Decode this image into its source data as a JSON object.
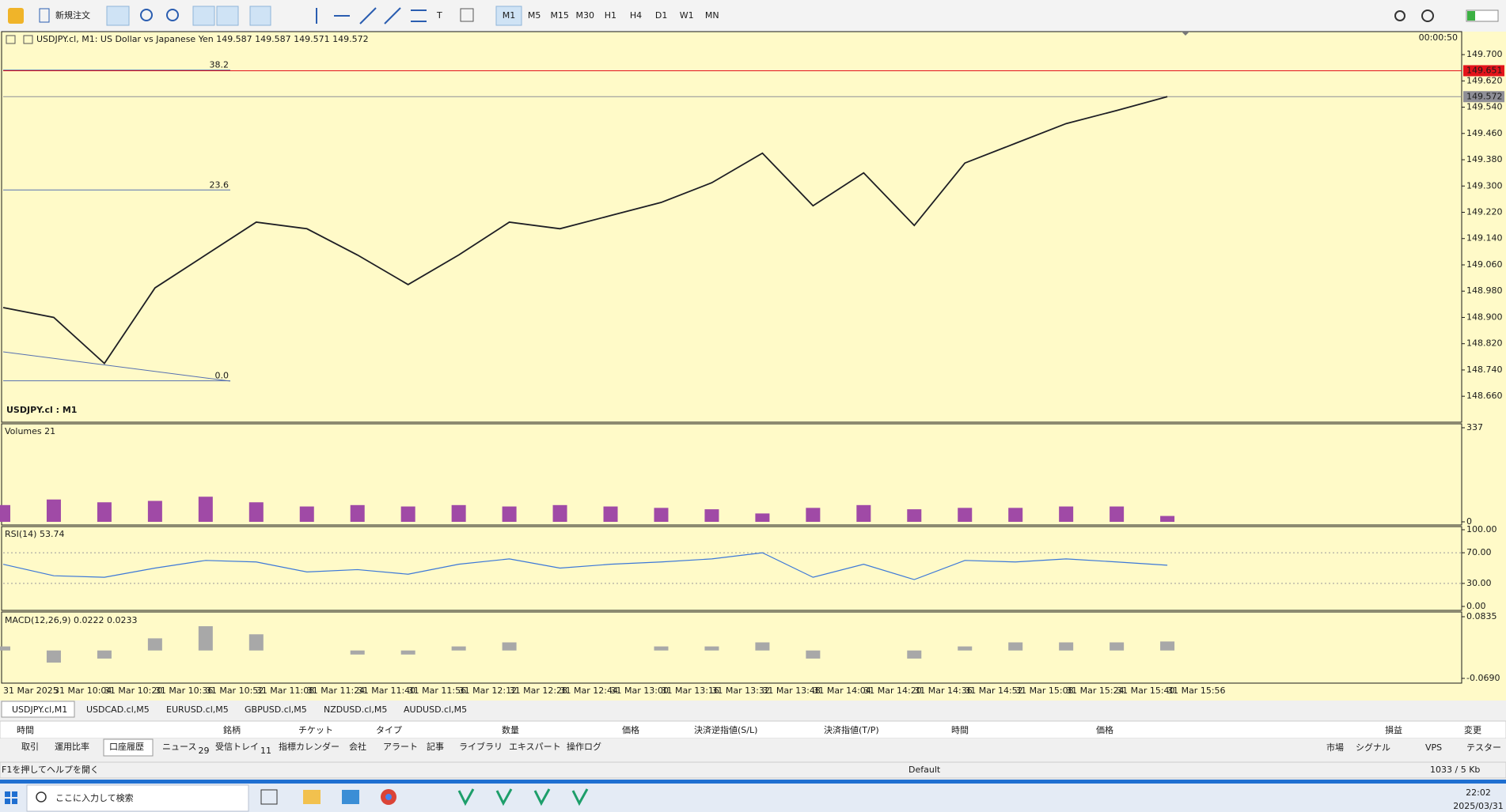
{
  "toolbar": {
    "new_order": "新規注文",
    "timeframes": [
      "M1",
      "M5",
      "M15",
      "M30",
      "H1",
      "H4",
      "D1",
      "W1",
      "MN"
    ]
  },
  "chart_data": [
    {
      "type": "line",
      "title": "USDJPY.cl, M1:  US Dollar vs Japanese Yen  149.587 149.587 149.571 149.572",
      "timer": "00:00:50",
      "symbol_label": "USDJPY.cl : M1",
      "categories": [
        "31 Mar 2025",
        "31 Mar 10:04",
        "31 Mar 10:20",
        "31 Mar 10:36",
        "31 Mar 10:52",
        "31 Mar 11:08",
        "31 Mar 11:24",
        "31 Mar 11:40",
        "31 Mar 11:56",
        "31 Mar 12:12",
        "31 Mar 12:28",
        "31 Mar 12:44",
        "31 Mar 13:00",
        "31 Mar 13:16",
        "31 Mar 13:32",
        "31 Mar 13:48",
        "31 Mar 14:04",
        "31 Mar 14:20",
        "31 Mar 14:36",
        "31 Mar 14:52",
        "31 Mar 15:08",
        "31 Mar 15:24",
        "31 Mar 15:40",
        "31 Mar 15:56"
      ],
      "values": [
        148.93,
        148.9,
        148.76,
        148.99,
        149.09,
        149.19,
        149.17,
        149.09,
        149.0,
        149.09,
        149.19,
        149.17,
        149.21,
        149.25,
        149.31,
        149.4,
        149.24,
        149.34,
        149.18,
        149.37,
        149.43,
        149.49,
        149.53,
        149.572
      ],
      "color": "#1e1e24",
      "ylim": [
        148.581,
        149.77
      ],
      "yticks": [
        {
          "value": 149.7,
          "label": "149.700"
        },
        {
          "value": 149.62,
          "label": "149.620"
        },
        {
          "value": 149.54,
          "label": "149.540"
        },
        {
          "value": 149.46,
          "label": "149.460"
        },
        {
          "value": 149.38,
          "label": "149.380"
        },
        {
          "value": 149.3,
          "label": "149.300"
        },
        {
          "value": 149.22,
          "label": "149.220"
        },
        {
          "value": 149.14,
          "label": "149.140"
        },
        {
          "value": 149.06,
          "label": "149.060"
        },
        {
          "value": 148.98,
          "label": "148.980"
        },
        {
          "value": 148.9,
          "label": "148.900"
        },
        {
          "value": 148.82,
          "label": "148.820"
        },
        {
          "value": 148.74,
          "label": "148.740"
        },
        {
          "value": 148.66,
          "label": "148.660"
        }
      ],
      "price_lines": [
        {
          "value": 149.651,
          "color": "#e3141b"
        },
        {
          "value": 149.572,
          "color": "#8e8e96"
        }
      ],
      "fib_levels": [
        {
          "label": "38.2",
          "value": 149.653
        },
        {
          "label": "23.6",
          "value": 149.288
        },
        {
          "label": "0.0",
          "value": 148.707
        }
      ],
      "fib_color": "#5670b0"
    },
    {
      "type": "bar",
      "title": "Volumes 21",
      "values": [
        60,
        80,
        70,
        75,
        90,
        70,
        55,
        60,
        55,
        60,
        55,
        60,
        55,
        50,
        45,
        30,
        50,
        60,
        45,
        50,
        50,
        55,
        55,
        21
      ],
      "color": "#a04aa6",
      "ylim": [
        0,
        337
      ],
      "yticks": [
        0,
        337
      ]
    },
    {
      "type": "line",
      "title": "RSI(14) 53.74",
      "values": [
        55,
        40,
        38,
        50,
        60,
        58,
        45,
        48,
        42,
        55,
        62,
        50,
        55,
        58,
        62,
        70,
        38,
        55,
        35,
        60,
        58,
        62,
        58,
        53.74
      ],
      "color": "#3c78d8",
      "ylim": [
        0,
        100
      ],
      "yticks": [
        {
          "value": 100,
          "label": "100.00"
        },
        {
          "value": 70,
          "label": "70.00"
        },
        {
          "value": 30,
          "label": "30.00"
        },
        {
          "value": 0,
          "label": "0.00"
        }
      ],
      "grid": true
    },
    {
      "type": "bar",
      "title": "MACD(12,26,9) 0.0222 0.0233",
      "values": [
        0.01,
        -0.03,
        -0.02,
        0.03,
        0.06,
        0.04,
        0.0,
        -0.01,
        -0.01,
        0.01,
        0.02,
        0.0,
        0.0,
        0.01,
        0.01,
        0.02,
        -0.02,
        0.0,
        -0.02,
        0.01,
        0.02,
        0.02,
        0.02,
        0.0222
      ],
      "color": "#a8a8a8",
      "ylim": [
        -0.069,
        0.0835
      ],
      "yticks": [
        0.0835,
        {
          "value": -0.069,
          "label": "-0.0690"
        }
      ]
    }
  ],
  "symbol_tabs": [
    "USDJPY.cl,M1",
    "USDCAD.cl,M5",
    "EURUSD.cl,M5",
    "GBPUSD.cl,M5",
    "NZDUSD.cl,M5",
    "AUDUSD.cl,M5"
  ],
  "toolbox": {
    "columns": [
      "時間",
      "銘柄",
      "チケット",
      "タイプ",
      "数量",
      "価格",
      "決済逆指値(S/L)",
      "決済指値(T/P)",
      "時間",
      "価格",
      "損益",
      "変更"
    ],
    "tabs": [
      {
        "label": "取引"
      },
      {
        "label": "運用比率"
      },
      {
        "label": "口座履歴"
      },
      {
        "label": "ニュース",
        "badge": 29
      },
      {
        "label": "受信トレイ",
        "badge": 11
      },
      {
        "label": "指標カレンダー"
      },
      {
        "label": "会社"
      },
      {
        "label": "アラート"
      },
      {
        "label": "記事"
      },
      {
        "label": "ライブラリ"
      },
      {
        "label": "エキスパート"
      },
      {
        "label": "操作ログ"
      }
    ],
    "right_tabs": [
      "市場",
      "シグナル",
      "VPS",
      "テスター"
    ]
  },
  "status_bar": {
    "help": "F1を押してヘルプを開く",
    "profile": "Default",
    "traffic": "1033 / 5 Kb"
  },
  "taskbar": {
    "search": "ここに入力して検索",
    "time": "22:02",
    "date": "2025/03/31"
  }
}
